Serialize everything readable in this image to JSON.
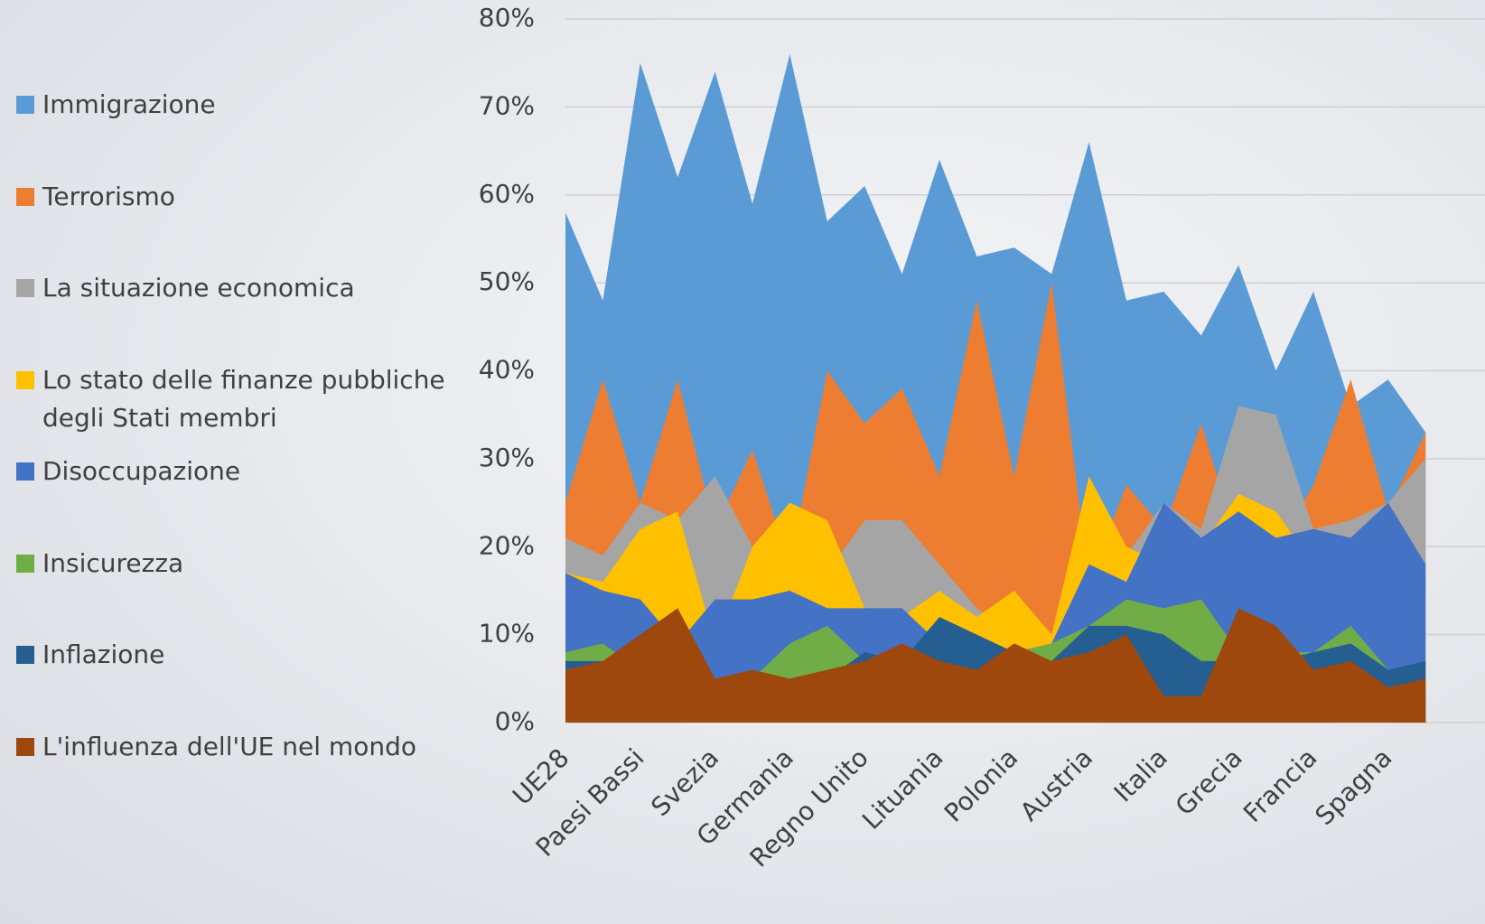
{
  "chart_data": {
    "type": "area",
    "categories": [
      "UE28",
      null,
      "Paesi Bassi",
      null,
      "Svezia",
      null,
      "Germania",
      null,
      "Regno Unito",
      null,
      "Lituania",
      null,
      "Polonia",
      null,
      "Austria",
      null,
      "Italia",
      null,
      "Grecia",
      null,
      "Francia",
      null,
      "Spagna",
      null
    ],
    "series": [
      {
        "name": "Immigrazione",
        "color": "#5b9bd5",
        "values": [
          58,
          48,
          75,
          62,
          74,
          59,
          76,
          57,
          61,
          51,
          64,
          53,
          54,
          51,
          66,
          48,
          49,
          44,
          52,
          40,
          49,
          36,
          39,
          33
        ]
      },
      {
        "name": "Terrorismo",
        "color": "#ed7d31",
        "values": [
          25,
          39,
          25,
          39,
          22,
          31,
          18,
          40,
          34,
          38,
          28,
          48,
          28,
          50,
          16,
          27,
          22,
          34,
          20,
          20,
          27,
          39,
          24,
          33
        ]
      },
      {
        "name": "La situazione economica",
        "color": "#a5a5a5",
        "values": [
          21,
          19,
          25,
          23,
          28,
          20,
          22,
          17,
          23,
          23,
          18,
          13,
          10,
          9,
          14,
          19,
          25,
          22,
          36,
          35,
          22,
          23,
          25,
          30
        ]
      },
      {
        "name": "Lo stato delle finanze pubbliche degli Stati membri",
        "color": "#ffc000",
        "values": [
          17,
          16,
          22,
          24,
          9,
          20,
          25,
          23,
          13,
          12,
          15,
          12,
          15,
          10,
          28,
          20,
          18,
          20,
          26,
          24,
          18,
          15,
          15,
          14
        ]
      },
      {
        "name": "Disoccupazione",
        "color": "#4472c4",
        "values": [
          17,
          15,
          14,
          9,
          14,
          14,
          15,
          13,
          13,
          13,
          9,
          8,
          8,
          9,
          18,
          16,
          25,
          21,
          24,
          21,
          22,
          21,
          25,
          18
        ]
      },
      {
        "name": "Insicurezza",
        "color": "#70ad47",
        "values": [
          8,
          9,
          6,
          6,
          4,
          5,
          9,
          11,
          7,
          7,
          7,
          6,
          8,
          9,
          11,
          14,
          13,
          14,
          8,
          8,
          8,
          11,
          6,
          6
        ]
      },
      {
        "name": "Inflazione",
        "color": "#255e91",
        "values": [
          7,
          7,
          5,
          5,
          4,
          4,
          3,
          5,
          8,
          7,
          12,
          10,
          8,
          7,
          11,
          11,
          10,
          7,
          7,
          7,
          8,
          9,
          6,
          7
        ]
      },
      {
        "name": "L'influenza dell'UE nel mondo",
        "color": "#9e480e",
        "values": [
          6,
          7,
          10,
          13,
          5,
          6,
          5,
          6,
          7,
          9,
          7,
          6,
          9,
          7,
          8,
          10,
          3,
          3,
          13,
          11,
          6,
          7,
          4,
          5
        ]
      }
    ],
    "ylim": [
      0,
      80
    ],
    "yticks": [
      {
        "value": 0,
        "label": "0%"
      },
      {
        "value": 10,
        "label": "10%"
      },
      {
        "value": 20,
        "label": "20%"
      },
      {
        "value": 30,
        "label": "30%"
      },
      {
        "value": 40,
        "label": "40%"
      },
      {
        "value": 50,
        "label": "50%"
      },
      {
        "value": 60,
        "label": "60%"
      },
      {
        "value": 70,
        "label": "70%"
      },
      {
        "value": 80,
        "label": "80%"
      }
    ],
    "grid": true,
    "legend": "left"
  }
}
